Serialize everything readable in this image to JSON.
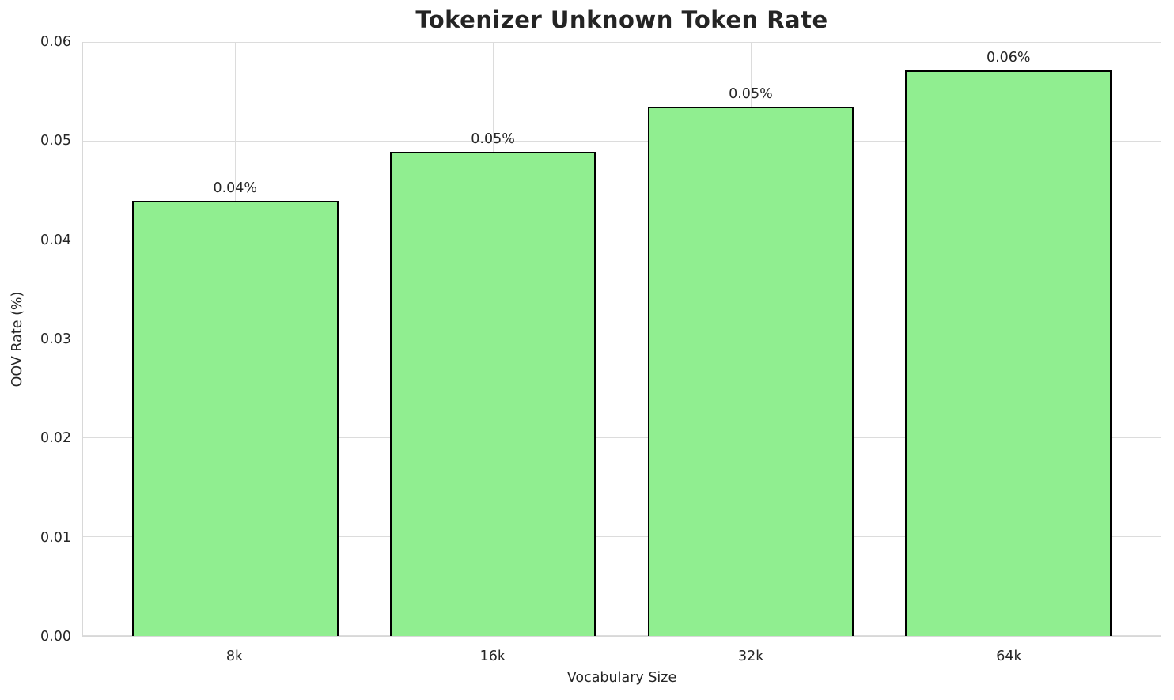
{
  "chart_data": {
    "type": "bar",
    "title": "Tokenizer Unknown Token Rate",
    "xlabel": "Vocabulary Size",
    "ylabel": "OOV Rate (%)",
    "categories": [
      "8k",
      "16k",
      "32k",
      "64k"
    ],
    "values": [
      0.044,
      0.049,
      0.0535,
      0.0572
    ],
    "bar_value_labels": [
      "0.04%",
      "0.05%",
      "0.05%",
      "0.06%"
    ],
    "ylim": [
      0,
      0.06
    ],
    "yticks": [
      0,
      0.01,
      0.02,
      0.03,
      0.04,
      0.05,
      0.06
    ],
    "ytick_labels": [
      "0.00",
      "0.01",
      "0.02",
      "0.03",
      "0.04",
      "0.05",
      "0.06"
    ],
    "grid": true,
    "legend": "none",
    "colors": {
      "bar_fill": "#90EE90",
      "bar_edge": "#000000",
      "grid": "#dcdcdc",
      "spine": "#d8d8d8",
      "text": "#262626",
      "background": "#ffffff"
    }
  }
}
